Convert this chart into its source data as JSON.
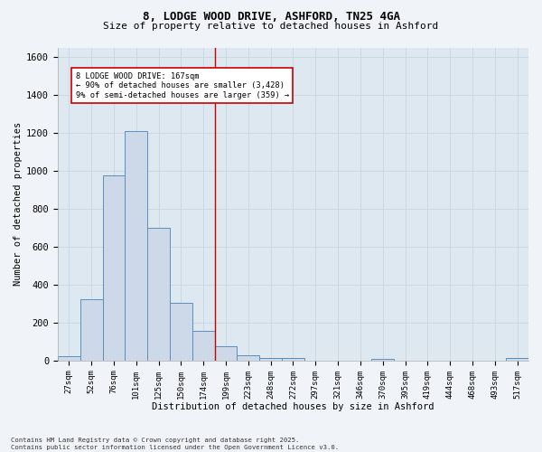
{
  "title_line1": "8, LODGE WOOD DRIVE, ASHFORD, TN25 4GA",
  "title_line2": "Size of property relative to detached houses in Ashford",
  "xlabel": "Distribution of detached houses by size in Ashford",
  "ylabel": "Number of detached properties",
  "bar_labels": [
    "27sqm",
    "52sqm",
    "76sqm",
    "101sqm",
    "125sqm",
    "150sqm",
    "174sqm",
    "199sqm",
    "223sqm",
    "248sqm",
    "272sqm",
    "297sqm",
    "321sqm",
    "346sqm",
    "370sqm",
    "395sqm",
    "419sqm",
    "444sqm",
    "468sqm",
    "493sqm",
    "517sqm"
  ],
  "bar_values": [
    22,
    325,
    975,
    1210,
    700,
    305,
    155,
    75,
    30,
    15,
    12,
    0,
    0,
    0,
    10,
    0,
    0,
    0,
    0,
    0,
    15
  ],
  "bar_color": "#cdd9e8",
  "bar_edgecolor": "#5b8fbe",
  "vline_x_index": 6.5,
  "vline_color": "#cc0000",
  "annotation_title": "8 LODGE WOOD DRIVE: 167sqm",
  "annotation_line2": "← 90% of detached houses are smaller (3,428)",
  "annotation_line3": "9% of semi-detached houses are larger (359) →",
  "annotation_box_color": "#ffffff",
  "annotation_box_edgecolor": "#cc0000",
  "ylim": [
    0,
    1650
  ],
  "yticks": [
    0,
    200,
    400,
    600,
    800,
    1000,
    1200,
    1400,
    1600
  ],
  "grid_color": "#c8d4e0",
  "background_color": "#dde8f0",
  "fig_background_color": "#f0f4f8",
  "footer_line1": "Contains HM Land Registry data © Crown copyright and database right 2025.",
  "footer_line2": "Contains public sector information licensed under the Open Government Licence v3.0."
}
